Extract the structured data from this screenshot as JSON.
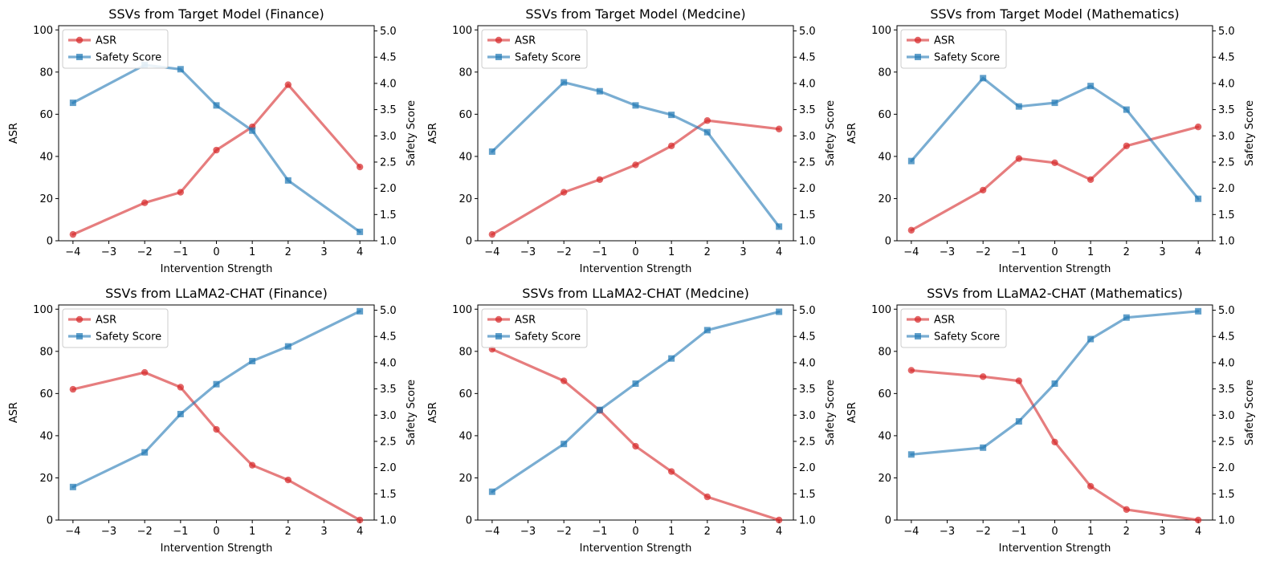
{
  "colors": {
    "asr": "#d62728",
    "safety": "#1f77b4",
    "axis": "#000000"
  },
  "chart_data": [
    {
      "type": "line",
      "title": "SSVs from Target Model (Finance)",
      "xlabel": "Intervention Strength",
      "ylabel": "ASR",
      "y2label": "Safety Score",
      "x": [
        -4,
        -2,
        -1,
        0,
        1,
        2,
        4
      ],
      "xticks": [
        "−4",
        "−3",
        "−2",
        "−1",
        "0",
        "1",
        "2",
        "3",
        "4"
      ],
      "yticks": [
        "0",
        "20",
        "40",
        "60",
        "80",
        "100"
      ],
      "y2ticks": [
        "1.0",
        "1.5",
        "2.0",
        "2.5",
        "3.0",
        "3.5",
        "4.0",
        "4.5",
        "5.0"
      ],
      "xlim": [
        -4.4,
        4.4
      ],
      "ylim": [
        0,
        102
      ],
      "y2lim": [
        1.0,
        5.1
      ],
      "legend": "upper-left",
      "series": [
        {
          "name": "ASR",
          "axis": "left",
          "values": [
            3,
            18,
            23,
            43,
            54,
            74,
            35
          ]
        },
        {
          "name": "Safety Score",
          "axis": "right",
          "values": [
            3.63,
            4.35,
            4.27,
            3.58,
            3.1,
            2.15,
            1.17
          ]
        }
      ]
    },
    {
      "type": "line",
      "title": "SSVs from Target Model (Medcine)",
      "xlabel": "Intervention Strength",
      "ylabel": "ASR",
      "y2label": "Safety Score",
      "x": [
        -4,
        -2,
        -1,
        0,
        1,
        2,
        4
      ],
      "xticks": [
        "−4",
        "−3",
        "−2",
        "−1",
        "0",
        "1",
        "2",
        "3",
        "4"
      ],
      "yticks": [
        "0",
        "20",
        "40",
        "60",
        "80",
        "100"
      ],
      "y2ticks": [
        "1.0",
        "1.5",
        "2.0",
        "2.5",
        "3.0",
        "3.5",
        "4.0",
        "4.5",
        "5.0"
      ],
      "xlim": [
        -4.4,
        4.4
      ],
      "ylim": [
        0,
        102
      ],
      "y2lim": [
        1.0,
        5.1
      ],
      "legend": "upper-left",
      "series": [
        {
          "name": "ASR",
          "axis": "left",
          "values": [
            3,
            23,
            29,
            36,
            45,
            57,
            53
          ]
        },
        {
          "name": "Safety Score",
          "axis": "right",
          "values": [
            2.7,
            4.02,
            3.85,
            3.58,
            3.4,
            3.07,
            1.27
          ]
        }
      ]
    },
    {
      "type": "line",
      "title": "SSVs from Target Model (Mathematics)",
      "xlabel": "Intervention Strength",
      "ylabel": "ASR",
      "y2label": "Safety Score",
      "x": [
        -4,
        -2,
        -1,
        0,
        1,
        2,
        4
      ],
      "xticks": [
        "−4",
        "−3",
        "−2",
        "−1",
        "0",
        "1",
        "2",
        "3",
        "4"
      ],
      "yticks": [
        "0",
        "20",
        "40",
        "60",
        "80",
        "100"
      ],
      "y2ticks": [
        "1.0",
        "1.5",
        "2.0",
        "2.5",
        "3.0",
        "3.5",
        "4.0",
        "4.5",
        "5.0"
      ],
      "xlim": [
        -4.4,
        4.4
      ],
      "ylim": [
        0,
        102
      ],
      "y2lim": [
        1.0,
        5.1
      ],
      "legend": "upper-left",
      "series": [
        {
          "name": "ASR",
          "axis": "left",
          "values": [
            5,
            24,
            39,
            37,
            29,
            45,
            54
          ]
        },
        {
          "name": "Safety Score",
          "axis": "right",
          "values": [
            2.52,
            4.1,
            3.56,
            3.63,
            3.95,
            3.5,
            1.8
          ]
        }
      ]
    },
    {
      "type": "line",
      "title": "SSVs from LLaMA2-CHAT (Finance)",
      "xlabel": "Intervention Strength",
      "ylabel": "ASR",
      "y2label": "Safety Score",
      "x": [
        -4,
        -2,
        -1,
        0,
        1,
        2,
        4
      ],
      "xticks": [
        "−4",
        "−3",
        "−2",
        "−1",
        "0",
        "1",
        "2",
        "3",
        "4"
      ],
      "yticks": [
        "0",
        "20",
        "40",
        "60",
        "80",
        "100"
      ],
      "y2ticks": [
        "1.0",
        "1.5",
        "2.0",
        "2.5",
        "3.0",
        "3.5",
        "4.0",
        "4.5",
        "5.0"
      ],
      "xlim": [
        -4.4,
        4.4
      ],
      "ylim": [
        0,
        102
      ],
      "y2lim": [
        1.0,
        5.1
      ],
      "legend": "upper-left",
      "series": [
        {
          "name": "ASR",
          "axis": "left",
          "values": [
            62,
            70,
            63,
            43,
            26,
            19,
            0
          ]
        },
        {
          "name": "Safety Score",
          "axis": "right",
          "values": [
            1.63,
            2.29,
            3.02,
            3.59,
            4.03,
            4.31,
            4.98
          ]
        }
      ]
    },
    {
      "type": "line",
      "title": "SSVs from LLaMA2-CHAT (Medcine)",
      "xlabel": "Intervention Strength",
      "ylabel": "ASR",
      "y2label": "Safety Score",
      "x": [
        -4,
        -2,
        -1,
        0,
        1,
        2,
        4
      ],
      "xticks": [
        "−4",
        "−3",
        "−2",
        "−1",
        "0",
        "1",
        "2",
        "3",
        "4"
      ],
      "yticks": [
        "0",
        "20",
        "40",
        "60",
        "80",
        "100"
      ],
      "y2ticks": [
        "1.0",
        "1.5",
        "2.0",
        "2.5",
        "3.0",
        "3.5",
        "4.0",
        "4.5",
        "5.0"
      ],
      "xlim": [
        -4.4,
        4.4
      ],
      "ylim": [
        0,
        102
      ],
      "y2lim": [
        1.0,
        5.1
      ],
      "legend": "upper-left",
      "series": [
        {
          "name": "ASR",
          "axis": "left",
          "values": [
            81,
            66,
            52,
            35,
            23,
            11,
            0
          ]
        },
        {
          "name": "Safety Score",
          "axis": "right",
          "values": [
            1.54,
            2.45,
            3.1,
            3.6,
            4.08,
            4.62,
            4.97
          ]
        }
      ]
    },
    {
      "type": "line",
      "title": "SSVs from LLaMA2-CHAT (Mathematics)",
      "xlabel": "Intervention Strength",
      "ylabel": "ASR",
      "y2label": "Safety Score",
      "x": [
        -4,
        -2,
        -1,
        0,
        1,
        2,
        4
      ],
      "xticks": [
        "−4",
        "−3",
        "−2",
        "−1",
        "0",
        "1",
        "2",
        "3",
        "4"
      ],
      "yticks": [
        "0",
        "20",
        "40",
        "60",
        "80",
        "100"
      ],
      "y2ticks": [
        "1.0",
        "1.5",
        "2.0",
        "2.5",
        "3.0",
        "3.5",
        "4.0",
        "4.5",
        "5.0"
      ],
      "xlim": [
        -4.4,
        4.4
      ],
      "ylim": [
        0,
        102
      ],
      "y2lim": [
        1.0,
        5.1
      ],
      "legend": "upper-left",
      "series": [
        {
          "name": "ASR",
          "axis": "left",
          "values": [
            71,
            68,
            66,
            37,
            16,
            5,
            0
          ]
        },
        {
          "name": "Safety Score",
          "axis": "right",
          "values": [
            2.25,
            2.38,
            2.88,
            3.6,
            4.45,
            4.86,
            4.98
          ]
        }
      ]
    }
  ]
}
